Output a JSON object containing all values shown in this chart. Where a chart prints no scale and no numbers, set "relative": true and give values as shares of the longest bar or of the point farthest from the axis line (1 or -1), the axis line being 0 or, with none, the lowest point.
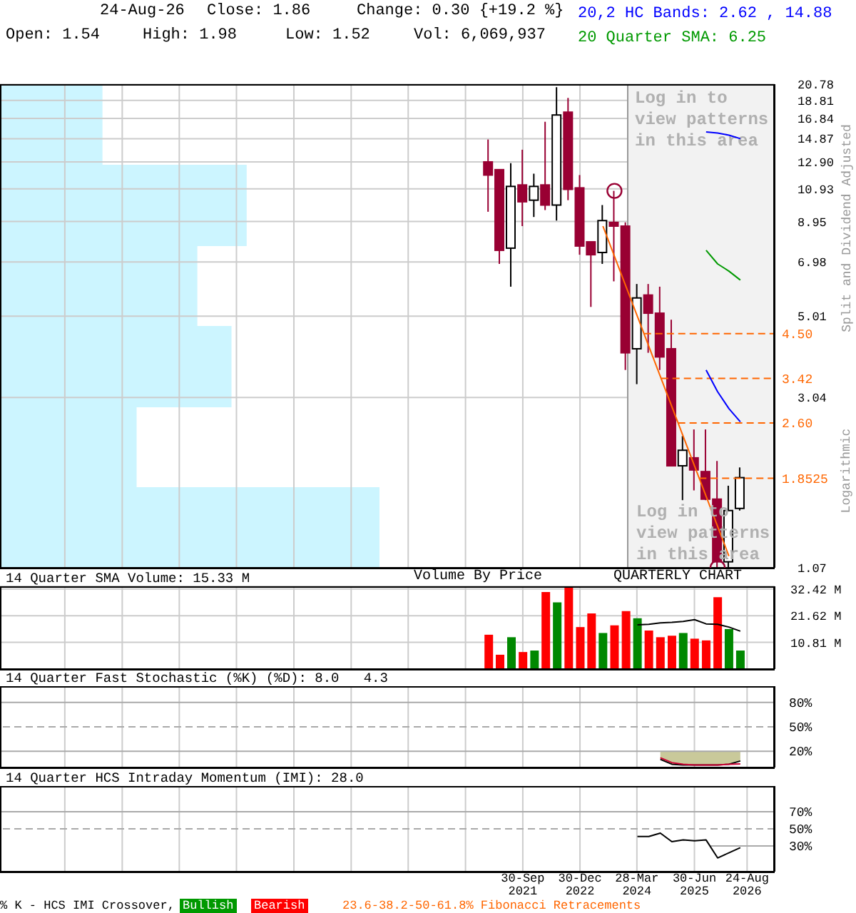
{
  "chart_data": [
    {
      "type": "candlestick",
      "x": [
        "2021-01-01",
        "2021-04-01",
        "2021-07-01",
        "2021-10-01",
        "2022-01-01",
        "2022-04-01",
        "2022-07-01",
        "2022-10-01",
        "2023-01-01",
        "2023-04-01",
        "2023-07-01",
        "2023-10-01",
        "2024-01-01",
        "2024-04-01",
        "2024-07-01",
        "2024-10-01",
        "2025-01-01",
        "2025-04-01",
        "2025-07-01",
        "2025-10-01",
        "2026-01-01",
        "2026-04-01",
        "2026-07-01"
      ],
      "ohlc": [
        [
          12.9,
          14.8,
          9.5,
          11.9
        ],
        [
          12.3,
          12.3,
          6.9,
          7.5
        ],
        [
          7.6,
          12.8,
          6.0,
          11.1
        ],
        [
          11.2,
          13.9,
          8.7,
          10.1
        ],
        [
          10.2,
          12.0,
          9.2,
          11.1
        ],
        [
          11.2,
          16.5,
          9.6,
          9.9
        ],
        [
          9.9,
          20.4,
          9.0,
          17.2
        ],
        [
          17.5,
          19.1,
          10.2,
          10.9
        ],
        [
          11.0,
          11.9,
          7.3,
          7.7
        ],
        [
          7.9,
          7.9,
          5.3,
          7.3
        ],
        [
          7.4,
          9.9,
          6.9,
          9.0
        ],
        [
          8.9,
          10.8,
          6.2,
          8.7
        ],
        [
          8.7,
          8.9,
          3.6,
          4.0
        ],
        [
          4.1,
          6.1,
          3.3,
          5.6
        ],
        [
          5.7,
          6.1,
          4.0,
          5.1
        ],
        [
          5.1,
          6.0,
          3.6,
          3.9
        ],
        [
          4.1,
          4.9,
          2.0,
          2.0
        ],
        [
          2.0,
          2.4,
          1.62,
          2.2
        ],
        [
          2.1,
          2.5,
          1.72,
          1.95
        ],
        [
          1.93,
          2.5,
          1.62,
          1.63
        ],
        [
          1.63,
          2.06,
          1.07,
          1.11
        ],
        [
          1.11,
          1.77,
          1.07,
          1.52
        ],
        [
          1.54,
          1.98,
          1.52,
          1.86
        ]
      ],
      "colors": [
        "#990033",
        "#990033",
        "#ffffff",
        "#990033",
        "#ffffff",
        "#990033",
        "#ffffff",
        "#990033",
        "#990033",
        "#990033",
        "#ffffff",
        "#990033",
        "#990033",
        "#ffffff",
        "#990033",
        "#990033",
        "#990033",
        "#ffffff",
        "#990033",
        "#990033",
        "#990033",
        "#ffffff",
        "#ffffff"
      ],
      "series": [
        {
          "name": "20,2 HC Bands: 2.62 , 14.88",
          "type": "line",
          "color": "#0000ff",
          "x": [
            "2025-10-01",
            "2026-01-01",
            "2026-04-01",
            "2026-07-01"
          ],
          "values": [
            15.5,
            15.4,
            15.2,
            14.88
          ]
        },
        {
          "type": "line",
          "color": "#0000ff",
          "x": [
            "2025-10-01",
            "2026-01-01",
            "2026-04-01",
            "2026-07-01"
          ],
          "values": [
            3.6,
            3.15,
            2.84,
            2.62
          ]
        },
        {
          "name": "20 Quarter SMA: 6.25",
          "type": "line",
          "color": "#009900",
          "x": [
            "2025-10-01",
            "2026-01-01",
            "2026-04-01",
            "2026-07-01"
          ],
          "values": [
            7.5,
            6.9,
            6.6,
            6.25
          ]
        },
        {
          "type": "line",
          "color": "#ff6600",
          "x": [
            "2023-07-01",
            "2026-04-01"
          ],
          "values": [
            8.7,
            1.15
          ]
        },
        {
          "type": "scatter",
          "color": "#990033",
          "marker": "circle",
          "x": [
            "2023-10-01",
            "2026-01-01"
          ],
          "values": [
            10.8,
            1.07
          ]
        }
      ],
      "xlim": [
        "2010-05-01",
        "2027-04-01"
      ],
      "xticks": [
        {
          "value": "2011-09-30",
          "label": null
        },
        {
          "value": "2012-12-31",
          "label": null
        },
        {
          "value": "2014-03-31",
          "label": null
        },
        {
          "value": "2015-06-30",
          "label": null
        },
        {
          "value": "2016-09-30",
          "label": null
        },
        {
          "value": "2017-12-31",
          "label": null
        },
        {
          "value": "2019-03-31",
          "label": null
        },
        {
          "value": "2020-06-30",
          "label": null
        },
        {
          "value": "2021-09-30",
          "label": null
        },
        {
          "value": "2022-12-30",
          "label": null
        },
        {
          "value": "2024-03-28",
          "label": null
        },
        {
          "value": "2025-06-30",
          "label": null
        },
        {
          "value": "2026-08-24",
          "label": null
        }
      ],
      "ylim": [
        1.07,
        20.78
      ],
      "yticks": [
        1.07,
        3.04,
        5.01,
        6.98,
        8.95,
        10.93,
        {
          "value": 12.9,
          "label": "12.90"
        },
        14.87,
        16.84,
        18.81,
        20.78
      ],
      "log": true,
      "grid": true,
      "tick_labels": "y",
      "legend": "top right",
      "ylabel": "Split and Dividend Adjusted",
      "bands": [
        {
          "axis": "x",
          "from": "2024-01-15",
          "to": "2027-04-01",
          "label": "Log in to view patterns in this area",
          "color": "#f2f2f2"
        }
      ],
      "ref_lines": [
        {
          "axis": "y",
          "value": 4.5,
          "label": "4.50",
          "color": "#ff6600",
          "line_style": "dashed"
        },
        {
          "axis": "y",
          "value": 3.42,
          "label": "3.42",
          "color": "#ff6600",
          "line_style": "dashed"
        },
        {
          "axis": "y",
          "value": 2.6,
          "label": "2.60",
          "color": "#ff6600",
          "line_style": "dashed"
        },
        {
          "axis": "y",
          "value": 1.8525,
          "label": "1.8525",
          "color": "#ff6600",
          "line_style": "dashed"
        }
      ],
      "annotations": [
        "24-Aug-26",
        "Close: 1.86",
        "Change: 0.30 {+19.2 %}",
        "Open: 1.54",
        "High: 1.98",
        "Low: 1.52",
        "Vol: 6,069,937",
        "QUARTERLY CHART",
        "Log in to view patterns in this area",
        "Logarithmic",
        "Volume By Price"
      ]
    },
    {
      "type": "bar",
      "orientation": "horizontal",
      "relative": true,
      "color": "#ccf5ff",
      "categories": [
        null,
        null,
        null,
        null,
        null,
        null
      ],
      "values": [
        0.27,
        0.65,
        0.52,
        0.61,
        0.36,
        1
      ]
    },
    {
      "type": "bar",
      "title": "14 Quarter SMA Volume: 15.33 M",
      "x": [
        "2021-01-01",
        "2021-04-01",
        "2021-07-01",
        "2021-10-01",
        "2022-01-01",
        "2022-04-01",
        "2022-07-01",
        "2022-10-01",
        "2023-01-01",
        "2023-04-01",
        "2023-07-01",
        "2023-10-01",
        "2024-01-01",
        "2024-04-01",
        "2024-07-01",
        "2024-10-01",
        "2025-01-01",
        "2025-04-01",
        "2025-07-01",
        "2025-10-01",
        "2026-01-01",
        "2026-04-01",
        "2026-07-01"
      ],
      "series": [
        {
          "values": [
            13.9,
            5.8,
            12.9,
            6.9,
            7.5,
            31.2,
            27.0,
            33.0,
            17.0,
            22.5,
            14.6,
            17.7,
            23.5,
            20.6,
            15.6,
            12.9,
            13.5,
            14.6,
            12.3,
            11.6,
            29.1,
            16.2,
            7.5
          ],
          "colors": [
            "#ff0000",
            "#ff0000",
            "#008800",
            "#ff0000",
            "#008800",
            "#ff0000",
            "#008800",
            "#ff0000",
            "#ff0000",
            "#ff0000",
            "#008800",
            "#ff0000",
            "#ff0000",
            "#008800",
            "#ff0000",
            "#ff0000",
            "#ff0000",
            "#008800",
            "#ff0000",
            "#ff0000",
            "#ff0000",
            "#008800",
            "#008800"
          ]
        },
        {
          "type": "line",
          "color": "#000000",
          "x": [
            "2024-04-01",
            "2024-07-01",
            "2024-10-01",
            "2025-01-01",
            "2025-04-01",
            "2025-07-01",
            "2025-10-01",
            "2026-01-01",
            "2026-04-01",
            "2026-07-01"
          ],
          "values": [
            17.9,
            18.1,
            18.7,
            18.9,
            19.3,
            20.0,
            18.3,
            18.1,
            17.0,
            15.33
          ]
        }
      ],
      "xlim": [
        "2010-05-01",
        "2027-04-01"
      ],
      "xticks": [
        {
          "value": "2011-09-30",
          "label": null
        },
        {
          "value": "2012-12-31",
          "label": null
        },
        {
          "value": "2014-03-31",
          "label": null
        },
        {
          "value": "2015-06-30",
          "label": null
        },
        {
          "value": "2016-09-30",
          "label": null
        },
        {
          "value": "2017-12-31",
          "label": null
        },
        {
          "value": "2019-03-31",
          "label": null
        },
        {
          "value": "2020-06-30",
          "label": null
        },
        {
          "value": "2021-09-30",
          "label": null
        },
        {
          "value": "2022-12-30",
          "label": null
        },
        {
          "value": "2024-03-28",
          "label": null
        },
        {
          "value": "2025-06-30",
          "label": null
        },
        {
          "value": "2026-08-24",
          "label": null
        }
      ],
      "ylim": [
        0,
        33.5
      ],
      "yticks": [
        {
          "value": 10.81,
          "label": "10.81 M"
        },
        {
          "value": 21.62,
          "label": "21.62 M"
        },
        {
          "value": 32.42,
          "label": "32.42 M"
        }
      ],
      "grid": true,
      "tick_labels": "y"
    },
    {
      "type": "line",
      "title": "14 Quarter Fast Stochastic (%K) (%D): 8.0   4.3",
      "series": [
        {
          "color": "#000000",
          "x": [
            "2024-10-01",
            "2025-01-01",
            "2025-04-01",
            "2025-07-01",
            "2025-10-01",
            "2026-01-01",
            "2026-04-01",
            "2026-07-01"
          ],
          "values": [
            10,
            4,
            3,
            3,
            3,
            3,
            4,
            8.0
          ],
          "lower": [
            10,
            4,
            3,
            3,
            3,
            3,
            4,
            8.0
          ],
          "upper": [
            20,
            20,
            20,
            20,
            20,
            20,
            20,
            20
          ]
        },
        {
          "color": "#cc0033",
          "x": [
            "2024-10-01",
            "2025-01-01",
            "2025-04-01",
            "2025-07-01",
            "2025-10-01",
            "2026-01-01",
            "2026-04-01",
            "2026-07-01"
          ],
          "values": [
            12,
            6,
            4,
            3,
            3,
            3,
            4,
            4.3
          ]
        }
      ],
      "xlim": [
        "2010-05-01",
        "2027-04-01"
      ],
      "xticks": [
        {
          "value": "2011-09-30",
          "label": null
        },
        {
          "value": "2012-12-31",
          "label": null
        },
        {
          "value": "2014-03-31",
          "label": null
        },
        {
          "value": "2015-06-30",
          "label": null
        },
        {
          "value": "2016-09-30",
          "label": null
        },
        {
          "value": "2017-12-31",
          "label": null
        },
        {
          "value": "2019-03-31",
          "label": null
        },
        {
          "value": "2020-06-30",
          "label": null
        },
        {
          "value": "2021-09-30",
          "label": null
        },
        {
          "value": "2022-12-30",
          "label": null
        },
        {
          "value": "2024-03-28",
          "label": null
        },
        {
          "value": "2025-06-30",
          "label": null
        },
        {
          "value": "2026-08-24",
          "label": null
        }
      ],
      "ylim": [
        0,
        100
      ],
      "yticks": [
        {
          "value": 20,
          "label": "20%"
        },
        {
          "value": 50,
          "label": "50%"
        },
        {
          "value": 80,
          "label": "80%"
        }
      ],
      "grid": "x",
      "tick_labels": "y",
      "ref_lines": [
        {
          "axis": "y",
          "value": 20,
          "color": "#aaaaaa"
        },
        {
          "axis": "y",
          "value": 50,
          "color": "#aaaaaa",
          "line_style": "dashed"
        },
        {
          "axis": "y",
          "value": 80,
          "color": "#aaaaaa"
        }
      ]
    },
    {
      "type": "line",
      "title": "14 Quarter HCS Intraday Momentum (IMI): 28.0",
      "series": [
        {
          "color": "#000000",
          "x": [
            "2024-04-01",
            "2024-07-01",
            "2024-10-01",
            "2025-01-01",
            "2025-04-01",
            "2025-07-01",
            "2025-10-01",
            "2026-01-01",
            "2026-04-01",
            "2026-07-01"
          ],
          "values": [
            41,
            41,
            45,
            35,
            37,
            36,
            37,
            16,
            22,
            28.0
          ]
        }
      ],
      "xlim": [
        "2010-05-01",
        "2027-04-01"
      ],
      "xticks": [
        {
          "value": "2011-09-30",
          "label": null
        },
        {
          "value": "2012-12-31",
          "label": null
        },
        {
          "value": "2014-03-31",
          "label": null
        },
        {
          "value": "2015-06-30",
          "label": null
        },
        {
          "value": "2016-09-30",
          "label": null
        },
        {
          "value": "2017-12-31",
          "label": null
        },
        {
          "value": "2019-03-31",
          "label": null
        },
        {
          "value": "2020-06-30",
          "label": null
        },
        {
          "value": "2021-09-30",
          "label": "30-Sep\n2021"
        },
        {
          "value": "2022-12-30",
          "label": "30-Dec\n2022"
        },
        {
          "value": "2024-03-28",
          "label": "28-Mar\n2024"
        },
        {
          "value": "2025-06-30",
          "label": "30-Jun\n2025"
        },
        {
          "value": "2026-08-24",
          "label": "24-Aug\n2026"
        }
      ],
      "ylim": [
        0,
        100
      ],
      "yticks": [
        {
          "value": 30,
          "label": "30%"
        },
        {
          "value": 50,
          "label": "50%"
        },
        {
          "value": 70,
          "label": "70%"
        }
      ],
      "grid": "x",
      "ref_lines": [
        {
          "axis": "y",
          "value": 30,
          "color": "#aaaaaa"
        },
        {
          "axis": "y",
          "value": 50,
          "color": "#aaaaaa",
          "line_style": "dashed"
        },
        {
          "axis": "y",
          "value": 70,
          "color": "#aaaaaa"
        }
      ],
      "annotations": [
        "% K - HCS IMI Crossover,",
        "Bullish",
        "Bearish",
        "23.6-38.2-50-61.8% Fibonacci Retracements"
      ]
    }
  ]
}
